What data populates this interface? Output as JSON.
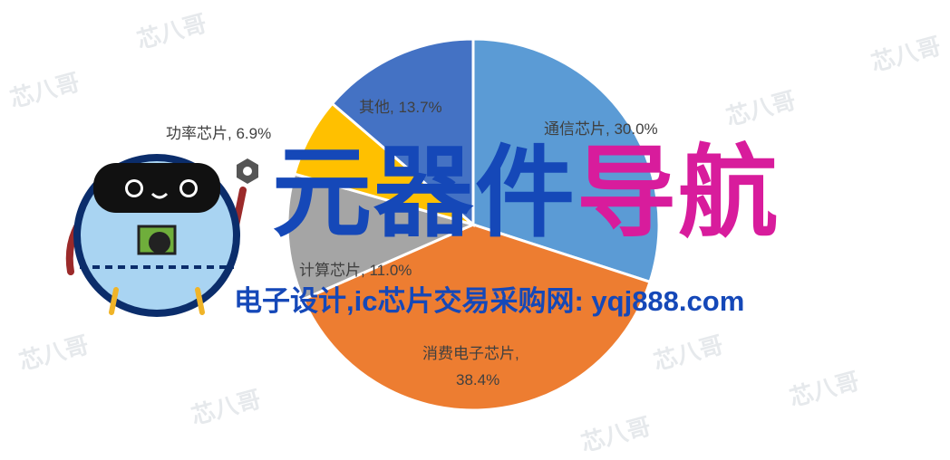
{
  "chart_data": {
    "type": "pie",
    "slices": [
      {
        "label": "通信芯片",
        "value": 30.0,
        "display": "通信芯片, 30.0%",
        "color": "#5B9BD5"
      },
      {
        "label": "消费电子芯片",
        "value": 38.4,
        "display": "消费电子芯片,",
        "display2": "38.4%",
        "color": "#ED7D31"
      },
      {
        "label": "计算芯片",
        "value": 11.0,
        "display": "计算芯片, 11.0%",
        "color": "#A5A5A5"
      },
      {
        "label": "功率芯片",
        "value": 6.9,
        "display": "功率芯片, 6.9%",
        "color": "#FFC000"
      },
      {
        "label": "其他",
        "value": 13.7,
        "display": "其他, 13.7%",
        "color": "#4472C4"
      }
    ]
  },
  "watermark": "芯八哥",
  "banner": {
    "title_part1": "元器件",
    "title_part2": "导航",
    "subtitle": "电子设计,ic芯片交易采购网: yqj888.com"
  }
}
